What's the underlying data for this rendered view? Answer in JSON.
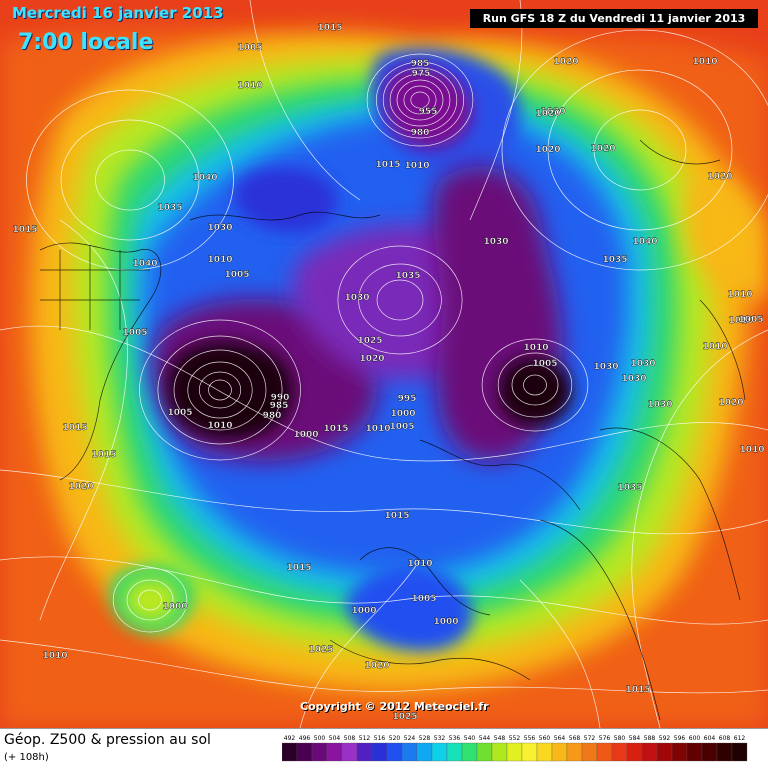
{
  "header": {
    "date": "Mercredi 16 janvier 2013",
    "time": "7:00 locale",
    "run": "Run GFS 18 Z du Vendredi 11 janvier 2013"
  },
  "footer": {
    "copyright": "Copyright © 2012 Meteociel.fr",
    "legend_title": "Géop. Z500 & pression au sol",
    "legend_subtitle": "(+ 108h)"
  },
  "legend_ticks": [
    492,
    496,
    500,
    504,
    508,
    512,
    516,
    520,
    524,
    528,
    532,
    536,
    540,
    544,
    548,
    552,
    556,
    560,
    564,
    568,
    572,
    576,
    580,
    584,
    588,
    592,
    596,
    600,
    604,
    608,
    612
  ],
  "legend_colors": [
    "#2a002a",
    "#4a0050",
    "#6a0a78",
    "#8a14a0",
    "#9a30c8",
    "#5020c0",
    "#2a30d8",
    "#2050f0",
    "#1a7af0",
    "#10a8f0",
    "#10d0e8",
    "#18e0b8",
    "#30e070",
    "#70e030",
    "#b0e820",
    "#e0f020",
    "#f8f030",
    "#f8d820",
    "#f8b818",
    "#f89818",
    "#f07818",
    "#f05818",
    "#e83818",
    "#d82010",
    "#c01010",
    "#a00808",
    "#800404",
    "#600000",
    "#480000",
    "#300000",
    "#200000"
  ],
  "pressure_labels": [
    {
      "text": "1005"
    },
    {
      "text": "1015"
    },
    {
      "text": "1010"
    },
    {
      "text": "1040"
    },
    {
      "text": "1035"
    },
    {
      "text": "1015"
    },
    {
      "text": "1030"
    },
    {
      "text": "1010"
    },
    {
      "text": "1005"
    },
    {
      "text": "1040"
    },
    {
      "text": "1005"
    },
    {
      "text": "985"
    },
    {
      "text": "975"
    },
    {
      "text": "955"
    },
    {
      "text": "980"
    },
    {
      "text": "1010"
    },
    {
      "text": "1015"
    },
    {
      "text": "1020"
    },
    {
      "text": "1030"
    },
    {
      "text": "1020"
    },
    {
      "text": "1020"
    },
    {
      "text": "1020"
    },
    {
      "text": "1010"
    },
    {
      "text": "1020"
    },
    {
      "text": "1030"
    },
    {
      "text": "1040"
    },
    {
      "text": "1035"
    },
    {
      "text": "1035"
    },
    {
      "text": "1030"
    },
    {
      "text": "1025"
    },
    {
      "text": "1020"
    },
    {
      "text": "1010"
    },
    {
      "text": "1005"
    },
    {
      "text": "1010"
    },
    {
      "text": "1010"
    },
    {
      "text": "1010"
    },
    {
      "text": "1030"
    },
    {
      "text": "1030"
    },
    {
      "text": "1030"
    },
    {
      "text": "1020"
    },
    {
      "text": "1015"
    },
    {
      "text": "1005"
    },
    {
      "text": "1010"
    },
    {
      "text": "990"
    },
    {
      "text": "985"
    },
    {
      "text": "980"
    },
    {
      "text": "1000"
    },
    {
      "text": "1015"
    },
    {
      "text": "1010"
    },
    {
      "text": "995"
    },
    {
      "text": "1000"
    },
    {
      "text": "1005"
    },
    {
      "text": "1015"
    },
    {
      "text": "1015"
    },
    {
      "text": "1020"
    },
    {
      "text": "1015"
    },
    {
      "text": "1010"
    },
    {
      "text": "1005"
    },
    {
      "text": "1000"
    },
    {
      "text": "1010"
    },
    {
      "text": "1005"
    },
    {
      "text": "1000"
    },
    {
      "text": "1000"
    },
    {
      "text": "1025"
    },
    {
      "text": "1020"
    },
    {
      "text": "1025"
    },
    {
      "text": "1010"
    },
    {
      "text": "1015"
    },
    {
      "text": "1035"
    },
    {
      "text": "1030"
    }
  ]
}
